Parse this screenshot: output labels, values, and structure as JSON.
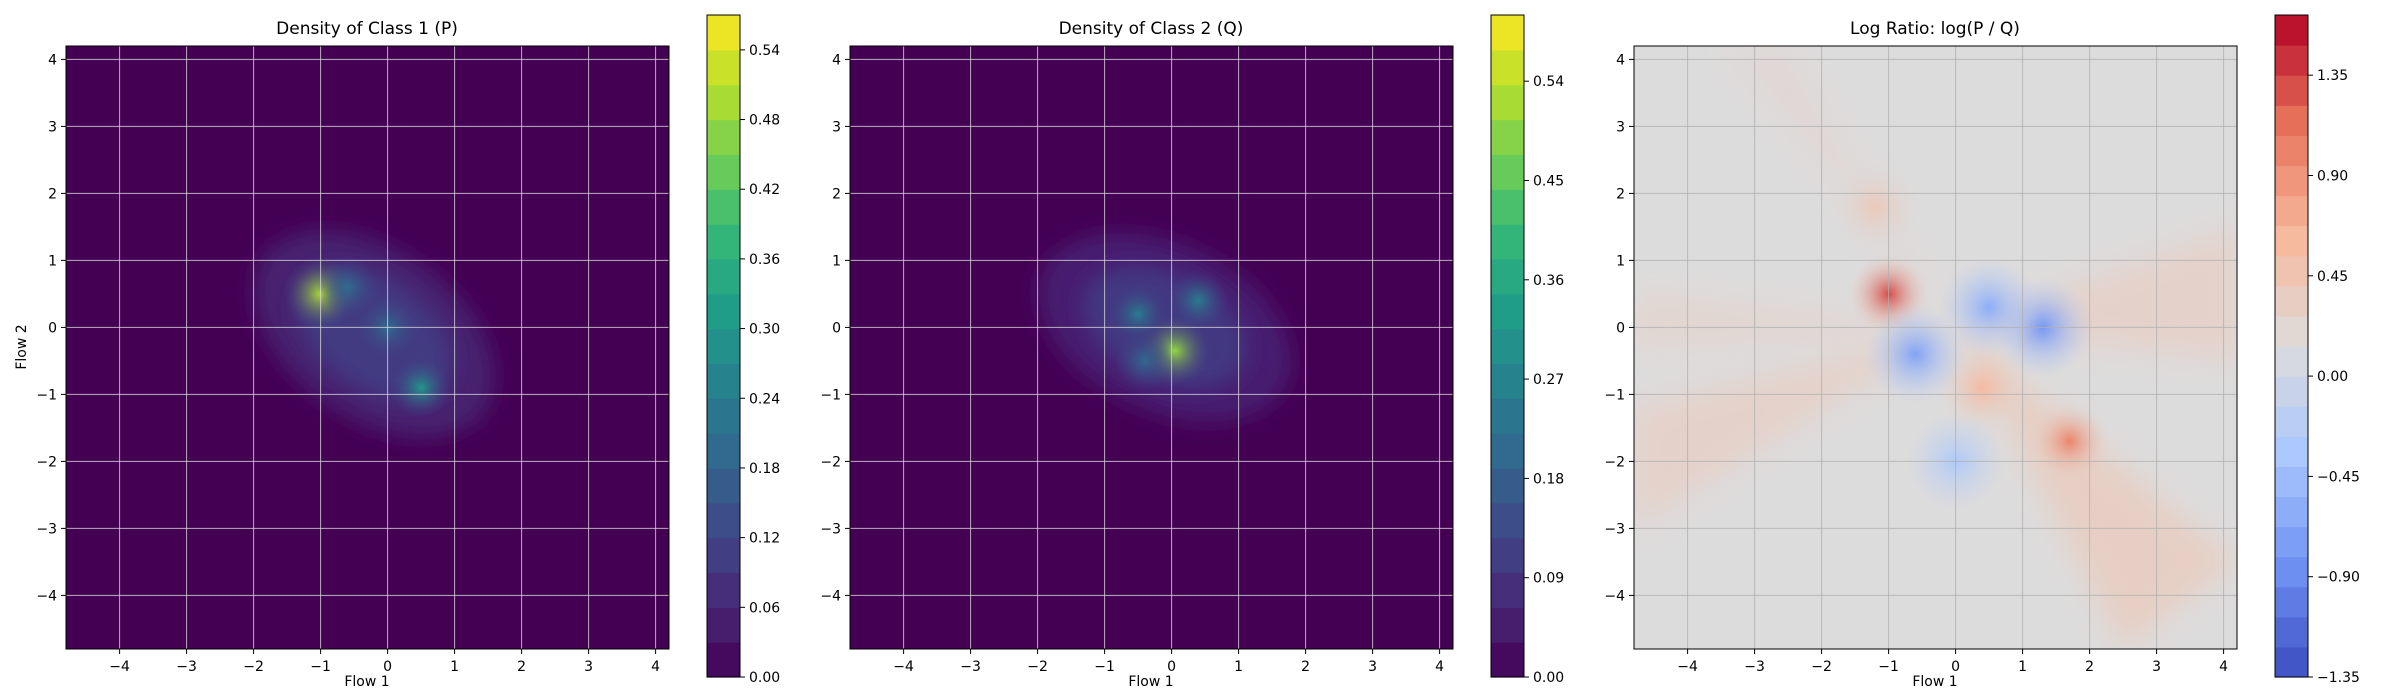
{
  "chart_data": [
    {
      "type": "heatmap",
      "title": "Density of Class 1 (P)",
      "xlabel": "Flow 1",
      "ylabel": "Flow 2",
      "xlim": [
        -4.8,
        4.2
      ],
      "ylim": [
        -4.8,
        4.2
      ],
      "xticks": [
        -4,
        -3,
        -2,
        -1,
        0,
        1,
        2,
        3,
        4
      ],
      "yticks": [
        -4,
        -3,
        -2,
        -1,
        0,
        1,
        2,
        3,
        4
      ],
      "grid": true,
      "colormap": "viridis",
      "colorbar": {
        "min": 0.0,
        "max": 0.57,
        "ticks": [
          "0.00",
          "0.06",
          "0.12",
          "0.18",
          "0.24",
          "0.30",
          "0.36",
          "0.42",
          "0.48",
          "0.54"
        ],
        "tick_values": [
          0.0,
          0.06,
          0.12,
          0.18,
          0.24,
          0.3,
          0.36,
          0.42,
          0.48,
          0.54
        ]
      },
      "density_peaks": [
        {
          "x": -1.0,
          "y": 0.5,
          "value": 0.5
        },
        {
          "x": 0.0,
          "y": 0.0,
          "value": 0.2
        },
        {
          "x": 0.5,
          "y": -0.9,
          "value": 0.3
        },
        {
          "x": -0.6,
          "y": 0.6,
          "value": 0.2
        }
      ]
    },
    {
      "type": "heatmap",
      "title": "Density of Class 2 (Q)",
      "xlabel": "Flow 1",
      "ylabel": "",
      "xlim": [
        -4.8,
        4.2
      ],
      "ylim": [
        -4.8,
        4.2
      ],
      "xticks": [
        -4,
        -3,
        -2,
        -1,
        0,
        1,
        2,
        3,
        4
      ],
      "yticks": [
        -4,
        -3,
        -2,
        -1,
        0,
        1,
        2,
        3,
        4
      ],
      "grid": true,
      "colormap": "viridis",
      "colorbar": {
        "min": 0.0,
        "max": 0.6,
        "ticks": [
          "0.00",
          "0.09",
          "0.18",
          "0.27",
          "0.36",
          "0.45",
          "0.54"
        ],
        "tick_values": [
          0.0,
          0.09,
          0.18,
          0.27,
          0.36,
          0.45,
          0.54
        ]
      },
      "density_peaks": [
        {
          "x": 0.05,
          "y": -0.35,
          "value": 0.5
        },
        {
          "x": -0.5,
          "y": 0.2,
          "value": 0.25
        },
        {
          "x": 0.4,
          "y": 0.4,
          "value": 0.25
        },
        {
          "x": -0.4,
          "y": -0.5,
          "value": 0.2
        }
      ]
    },
    {
      "type": "heatmap",
      "title": "Log Ratio: log(P / Q)",
      "xlabel": "Flow 1",
      "ylabel": "",
      "xlim": [
        -4.8,
        4.2
      ],
      "ylim": [
        -4.8,
        4.2
      ],
      "xticks": [
        -4,
        -3,
        -2,
        -1,
        0,
        1,
        2,
        3,
        4
      ],
      "yticks": [
        -4,
        -3,
        -2,
        -1,
        0,
        1,
        2,
        3,
        4
      ],
      "grid": true,
      "colormap": "coolwarm",
      "colorbar": {
        "min": -1.35,
        "max": 1.62,
        "ticks": [
          "−1.35",
          "−0.90",
          "−0.45",
          "0.00",
          "0.45",
          "0.90",
          "1.35"
        ],
        "tick_values": [
          -1.35,
          -0.9,
          -0.45,
          0.0,
          0.45,
          0.9,
          1.35
        ]
      },
      "hotspots": [
        {
          "x": -1.0,
          "y": 0.5,
          "value": 1.3
        },
        {
          "x": 1.7,
          "y": -1.7,
          "value": 1.0
        },
        {
          "x": 0.4,
          "y": -0.9,
          "value": 0.6
        },
        {
          "x": -1.2,
          "y": 1.8,
          "value": 0.4
        },
        {
          "x": 1.3,
          "y": 0.0,
          "value": -0.8
        },
        {
          "x": -0.6,
          "y": -0.4,
          "value": -0.7
        },
        {
          "x": 0.5,
          "y": 0.3,
          "value": -0.6
        },
        {
          "x": 0.0,
          "y": -2.0,
          "value": -0.3
        }
      ]
    }
  ]
}
